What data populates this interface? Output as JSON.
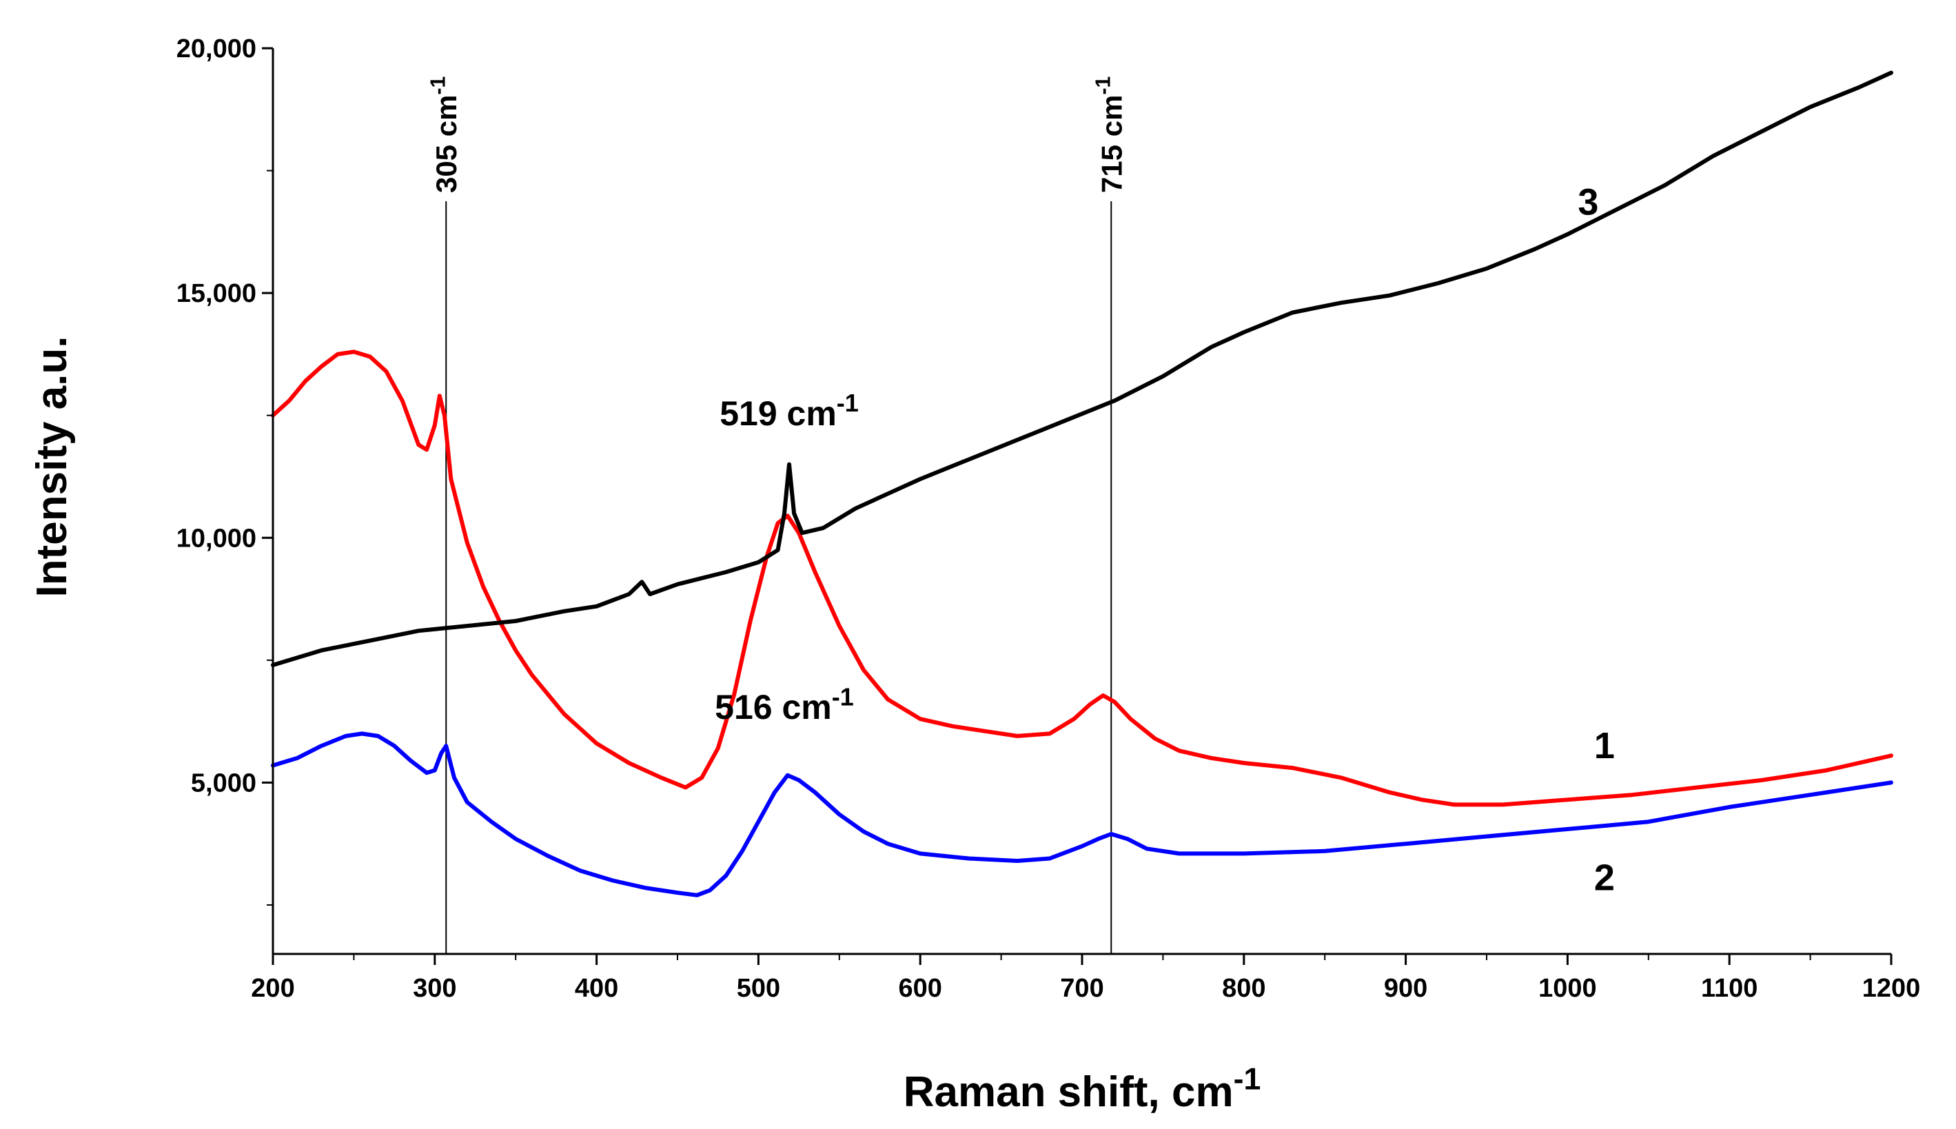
{
  "chart_data": {
    "type": "line",
    "title": "",
    "xlabel": "Raman shift, cm",
    "xlabel_sup": "-1",
    "ylabel": "Intensity a.u.",
    "xlim": [
      200,
      1200
    ],
    "ylim": [
      1500,
      20000
    ],
    "x_ticks": [
      200,
      300,
      400,
      500,
      600,
      700,
      800,
      900,
      1000,
      1100,
      1200
    ],
    "x_tick_labels": [
      "200",
      "300",
      "400",
      "500",
      "600",
      "700",
      "800",
      "900",
      "1000",
      "1100",
      "1200"
    ],
    "y_ticks": [
      5000,
      10000,
      15000,
      20000
    ],
    "y_tick_labels": [
      "5,000",
      "10,000",
      "15,000",
      "20,000"
    ],
    "vertical_lines": [
      {
        "x": 307,
        "label": "305 cm",
        "sup": "-1"
      },
      {
        "x": 718,
        "label": "715 cm",
        "sup": "-1"
      }
    ],
    "peak_annotations": [
      {
        "text": "519 cm",
        "sup": "-1",
        "x": 519,
        "y": 12300
      },
      {
        "text": "516 cm",
        "sup": "-1",
        "x": 516,
        "y": 6300
      }
    ],
    "series": [
      {
        "name": "1",
        "color": "#ff0000",
        "label_x": 1010,
        "label_y": 5500,
        "points": [
          [
            200,
            12500
          ],
          [
            210,
            12800
          ],
          [
            220,
            13200
          ],
          [
            230,
            13500
          ],
          [
            240,
            13750
          ],
          [
            250,
            13800
          ],
          [
            260,
            13700
          ],
          [
            270,
            13400
          ],
          [
            280,
            12800
          ],
          [
            290,
            11900
          ],
          [
            295,
            11800
          ],
          [
            300,
            12300
          ],
          [
            303,
            12900
          ],
          [
            306,
            12500
          ],
          [
            310,
            11200
          ],
          [
            320,
            9900
          ],
          [
            330,
            9000
          ],
          [
            340,
            8300
          ],
          [
            350,
            7700
          ],
          [
            360,
            7200
          ],
          [
            370,
            6800
          ],
          [
            380,
            6400
          ],
          [
            390,
            6100
          ],
          [
            400,
            5800
          ],
          [
            420,
            5400
          ],
          [
            440,
            5100
          ],
          [
            455,
            4900
          ],
          [
            465,
            5100
          ],
          [
            475,
            5700
          ],
          [
            485,
            6800
          ],
          [
            495,
            8300
          ],
          [
            505,
            9600
          ],
          [
            512,
            10300
          ],
          [
            518,
            10450
          ],
          [
            525,
            10100
          ],
          [
            535,
            9300
          ],
          [
            550,
            8200
          ],
          [
            565,
            7300
          ],
          [
            580,
            6700
          ],
          [
            600,
            6300
          ],
          [
            620,
            6150
          ],
          [
            640,
            6050
          ],
          [
            660,
            5950
          ],
          [
            680,
            6000
          ],
          [
            695,
            6300
          ],
          [
            705,
            6600
          ],
          [
            713,
            6780
          ],
          [
            720,
            6650
          ],
          [
            730,
            6300
          ],
          [
            745,
            5900
          ],
          [
            760,
            5650
          ],
          [
            780,
            5500
          ],
          [
            800,
            5400
          ],
          [
            830,
            5300
          ],
          [
            860,
            5100
          ],
          [
            890,
            4800
          ],
          [
            910,
            4650
          ],
          [
            930,
            4550
          ],
          [
            960,
            4550
          ],
          [
            1000,
            4650
          ],
          [
            1040,
            4750
          ],
          [
            1080,
            4900
          ],
          [
            1120,
            5050
          ],
          [
            1160,
            5250
          ],
          [
            1200,
            5550
          ]
        ]
      },
      {
        "name": "2",
        "color": "#0000ff",
        "label_x": 1010,
        "label_y": 2800,
        "points": [
          [
            200,
            5350
          ],
          [
            215,
            5500
          ],
          [
            230,
            5750
          ],
          [
            245,
            5950
          ],
          [
            255,
            6000
          ],
          [
            265,
            5950
          ],
          [
            275,
            5750
          ],
          [
            285,
            5450
          ],
          [
            295,
            5200
          ],
          [
            300,
            5250
          ],
          [
            304,
            5600
          ],
          [
            307,
            5750
          ],
          [
            312,
            5100
          ],
          [
            320,
            4600
          ],
          [
            335,
            4200
          ],
          [
            350,
            3850
          ],
          [
            370,
            3500
          ],
          [
            390,
            3200
          ],
          [
            410,
            3000
          ],
          [
            430,
            2850
          ],
          [
            450,
            2750
          ],
          [
            462,
            2700
          ],
          [
            470,
            2800
          ],
          [
            480,
            3100
          ],
          [
            490,
            3600
          ],
          [
            500,
            4200
          ],
          [
            510,
            4800
          ],
          [
            518,
            5150
          ],
          [
            525,
            5050
          ],
          [
            535,
            4800
          ],
          [
            550,
            4350
          ],
          [
            565,
            4000
          ],
          [
            580,
            3750
          ],
          [
            600,
            3550
          ],
          [
            630,
            3450
          ],
          [
            660,
            3400
          ],
          [
            680,
            3450
          ],
          [
            700,
            3700
          ],
          [
            710,
            3850
          ],
          [
            718,
            3950
          ],
          [
            728,
            3850
          ],
          [
            740,
            3650
          ],
          [
            760,
            3550
          ],
          [
            800,
            3550
          ],
          [
            850,
            3600
          ],
          [
            900,
            3750
          ],
          [
            950,
            3900
          ],
          [
            1000,
            4050
          ],
          [
            1050,
            4200
          ],
          [
            1100,
            4500
          ],
          [
            1150,
            4750
          ],
          [
            1200,
            5000
          ]
        ]
      },
      {
        "name": "3",
        "color": "#000000",
        "label_x": 1000,
        "label_y": 16600,
        "points": [
          [
            200,
            7400
          ],
          [
            230,
            7700
          ],
          [
            260,
            7900
          ],
          [
            290,
            8100
          ],
          [
            320,
            8200
          ],
          [
            350,
            8300
          ],
          [
            380,
            8500
          ],
          [
            400,
            8600
          ],
          [
            420,
            8850
          ],
          [
            428,
            9100
          ],
          [
            433,
            8850
          ],
          [
            450,
            9050
          ],
          [
            480,
            9300
          ],
          [
            500,
            9500
          ],
          [
            512,
            9750
          ],
          [
            516,
            10500
          ],
          [
            519,
            11500
          ],
          [
            522,
            10500
          ],
          [
            527,
            10100
          ],
          [
            540,
            10200
          ],
          [
            560,
            10600
          ],
          [
            580,
            10900
          ],
          [
            600,
            11200
          ],
          [
            630,
            11600
          ],
          [
            660,
            12000
          ],
          [
            690,
            12400
          ],
          [
            720,
            12800
          ],
          [
            750,
            13300
          ],
          [
            780,
            13900
          ],
          [
            800,
            14200
          ],
          [
            830,
            14600
          ],
          [
            860,
            14800
          ],
          [
            890,
            14950
          ],
          [
            920,
            15200
          ],
          [
            950,
            15500
          ],
          [
            980,
            15900
          ],
          [
            1000,
            16200
          ],
          [
            1030,
            16700
          ],
          [
            1060,
            17200
          ],
          [
            1090,
            17800
          ],
          [
            1120,
            18300
          ],
          [
            1150,
            18800
          ],
          [
            1180,
            19200
          ],
          [
            1200,
            19500
          ]
        ]
      }
    ]
  }
}
